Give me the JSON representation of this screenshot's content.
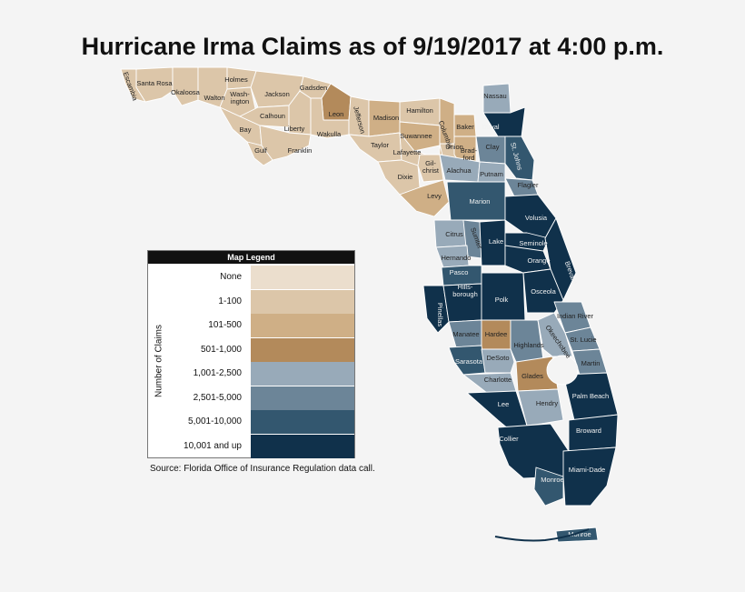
{
  "title": "Hurricane Irma Claims as of 9/19/2017 at 4:00 p.m.",
  "legend": {
    "title": "Map Legend",
    "axis_label": "Number of Claims",
    "bins": [
      {
        "label": "None",
        "color": "#ebdecd"
      },
      {
        "label": "1-100",
        "color": "#dcc6a9"
      },
      {
        "label": "101-500",
        "color": "#cfaf86"
      },
      {
        "label": "501-1,000",
        "color": "#b38a5b"
      },
      {
        "label": "1,001-2,500",
        "color": "#98aab9"
      },
      {
        "label": "2,501-5,000",
        "color": "#6c8598"
      },
      {
        "label": "5,001-10,000",
        "color": "#33576f"
      },
      {
        "label": "10,001 and up",
        "color": "#10314b"
      }
    ]
  },
  "source": "Source: Florida Office of Insurance Regulation data call.",
  "counties": [
    {
      "name": "Escambia",
      "bin": 1
    },
    {
      "name": "Santa Rosa",
      "bin": 1
    },
    {
      "name": "Okaloosa",
      "bin": 1
    },
    {
      "name": "Walton",
      "bin": 1
    },
    {
      "name": "Holmes",
      "bin": 1
    },
    {
      "name": "Wash-ington",
      "bin": 1
    },
    {
      "name": "Jackson",
      "bin": 1
    },
    {
      "name": "Bay",
      "bin": 1
    },
    {
      "name": "Calhoun",
      "bin": 1
    },
    {
      "name": "Gulf",
      "bin": 1
    },
    {
      "name": "Liberty",
      "bin": 1
    },
    {
      "name": "Franklin",
      "bin": 1
    },
    {
      "name": "Gadsden",
      "bin": 1
    },
    {
      "name": "Leon",
      "bin": 3
    },
    {
      "name": "Wakulla",
      "bin": 1
    },
    {
      "name": "Jefferson",
      "bin": 1
    },
    {
      "name": "Madison",
      "bin": 2
    },
    {
      "name": "Taylor",
      "bin": 1
    },
    {
      "name": "Hamilton",
      "bin": 1
    },
    {
      "name": "Suwannee",
      "bin": 2
    },
    {
      "name": "Columbia",
      "bin": 2
    },
    {
      "name": "Lafayette",
      "bin": 1
    },
    {
      "name": "Dixie",
      "bin": 1
    },
    {
      "name": "Gil-christ",
      "bin": 1
    },
    {
      "name": "Union",
      "bin": 1
    },
    {
      "name": "Brad-ford",
      "bin": 2
    },
    {
      "name": "Baker",
      "bin": 2
    },
    {
      "name": "Levy",
      "bin": 2
    },
    {
      "name": "Nassau",
      "bin": 4
    },
    {
      "name": "Duval",
      "bin": 7
    },
    {
      "name": "Clay",
      "bin": 5
    },
    {
      "name": "St. Johns",
      "bin": 6
    },
    {
      "name": "Alachua",
      "bin": 4
    },
    {
      "name": "Putnam",
      "bin": 4
    },
    {
      "name": "Flagler",
      "bin": 5
    },
    {
      "name": "Marion",
      "bin": 6
    },
    {
      "name": "Volusia",
      "bin": 7
    },
    {
      "name": "Citrus",
      "bin": 4
    },
    {
      "name": "Sumter",
      "bin": 5
    },
    {
      "name": "Lake",
      "bin": 7
    },
    {
      "name": "Seminole",
      "bin": 7
    },
    {
      "name": "Hernando",
      "bin": 4
    },
    {
      "name": "Orange",
      "bin": 7
    },
    {
      "name": "Brevard",
      "bin": 7
    },
    {
      "name": "Pasco",
      "bin": 6
    },
    {
      "name": "Pinellas",
      "bin": 7
    },
    {
      "name": "Hills-borough",
      "bin": 7
    },
    {
      "name": "Polk",
      "bin": 7
    },
    {
      "name": "Osceola",
      "bin": 7
    },
    {
      "name": "Indian River",
      "bin": 5
    },
    {
      "name": "Manatee",
      "bin": 5
    },
    {
      "name": "Hardee",
      "bin": 3
    },
    {
      "name": "Highlands",
      "bin": 5
    },
    {
      "name": "Okeechobee",
      "bin": 4
    },
    {
      "name": "St. Lucie",
      "bin": 5
    },
    {
      "name": "Sarasota",
      "bin": 6
    },
    {
      "name": "DeSoto",
      "bin": 4
    },
    {
      "name": "Martin",
      "bin": 5
    },
    {
      "name": "Charlotte",
      "bin": 4
    },
    {
      "name": "Glades",
      "bin": 3
    },
    {
      "name": "Palm Beach",
      "bin": 7
    },
    {
      "name": "Lee",
      "bin": 7
    },
    {
      "name": "Hendry",
      "bin": 4
    },
    {
      "name": "Broward",
      "bin": 7
    },
    {
      "name": "Collier",
      "bin": 7
    },
    {
      "name": "Monroe",
      "bin": 6
    },
    {
      "name": "Miami-Dade",
      "bin": 7
    },
    {
      "name": "Monroe",
      "bin": 6
    }
  ]
}
